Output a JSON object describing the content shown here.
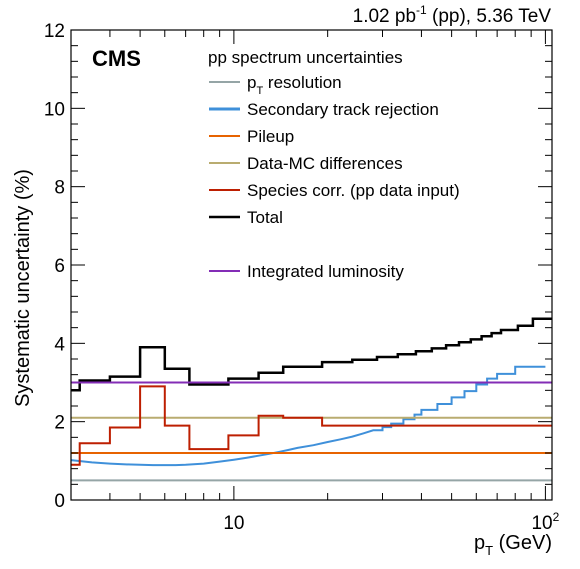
{
  "chart_data": {
    "type": "line",
    "header": {
      "lumi_value": "1.02 pb",
      "lumi_exp": "-1",
      "lumi_tail": " (pp), 5.36 TeV"
    },
    "experiment_label": "CMS",
    "legend_title": "pp spectrum uncertainties",
    "xlabel": {
      "main": "p",
      "sub": "T",
      "unit": " (GeV)"
    },
    "ylabel": "Systematic uncertainty (%)",
    "x_scale": "log",
    "xlim": [
      3,
      105
    ],
    "ylim": [
      0,
      12
    ],
    "y_ticks": [
      0,
      2,
      4,
      6,
      8,
      10,
      12
    ],
    "y_tick_labels": [
      "0",
      "2",
      "4",
      "6",
      "8",
      "10",
      "12"
    ],
    "x_ticks": [
      {
        "value": 10,
        "label": "10",
        "exp": ""
      },
      {
        "value": 100,
        "label": "10",
        "exp": "2"
      }
    ],
    "legend_placement": "top-right",
    "series": [
      {
        "name": "p resolution",
        "name_sub": "T",
        "color": "#95a5a6",
        "width": 2,
        "x": [
          3,
          105
        ],
        "y": [
          0.5,
          0.5
        ]
      },
      {
        "name": "Secondary track rejection",
        "color": "#3f90da",
        "width": 2,
        "x": [
          3,
          3.5,
          4,
          4.5,
          5,
          5.5,
          6,
          6.5,
          7,
          8,
          9,
          10,
          11,
          12,
          13,
          14,
          15,
          16,
          18,
          20,
          22,
          24,
          26,
          28,
          30,
          32,
          35,
          38,
          40,
          45,
          50,
          55,
          60,
          65,
          70,
          80,
          90,
          100
        ],
        "y": [
          1.02,
          0.96,
          0.93,
          0.91,
          0.9,
          0.89,
          0.89,
          0.89,
          0.9,
          0.93,
          0.98,
          1.03,
          1.08,
          1.13,
          1.18,
          1.23,
          1.28,
          1.33,
          1.4,
          1.48,
          1.55,
          1.62,
          1.7,
          1.78,
          1.86,
          1.95,
          2.06,
          2.18,
          2.3,
          2.45,
          2.62,
          2.78,
          2.95,
          3.1,
          3.22,
          3.4,
          3.4,
          3.4
        ]
      },
      {
        "name": "Pileup",
        "color": "#e76300",
        "width": 2,
        "x": [
          3,
          105
        ],
        "y": [
          1.2,
          1.2
        ]
      },
      {
        "name": "Data-MC differences",
        "color": "#b9ac70",
        "width": 2,
        "x": [
          3,
          105
        ],
        "y": [
          2.1,
          2.1
        ]
      },
      {
        "name": "Species corr. (pp data input)",
        "color": "#bd1f01",
        "width": 2,
        "x": [
          3,
          3.2,
          4,
          5,
          6,
          7.2,
          9.6,
          12,
          14.4,
          19.2,
          105
        ],
        "y": [
          0.9,
          1.45,
          1.85,
          2.9,
          1.9,
          1.3,
          1.65,
          2.15,
          2.1,
          1.9,
          1.9
        ]
      },
      {
        "name": "Total",
        "color": "#000000",
        "width": 2.5,
        "x": [
          3,
          3.2,
          4,
          5,
          6,
          7.2,
          9.6,
          12,
          14.4,
          19.2,
          24,
          28.8,
          33.6,
          38.4,
          43.2,
          48,
          52.8,
          57.6,
          62.4,
          67.2,
          72,
          81.6,
          91.2,
          105
        ],
        "y": [
          2.8,
          3.05,
          3.15,
          3.9,
          3.35,
          2.95,
          3.1,
          3.25,
          3.4,
          3.52,
          3.58,
          3.65,
          3.72,
          3.8,
          3.87,
          3.95,
          4.03,
          4.1,
          4.18,
          4.26,
          4.34,
          4.45,
          4.63,
          4.63
        ]
      },
      {
        "name": "Integrated luminosity",
        "color": "#832db6",
        "width": 2,
        "x": [
          3,
          105
        ],
        "y": [
          3.0,
          3.0
        ]
      }
    ]
  }
}
